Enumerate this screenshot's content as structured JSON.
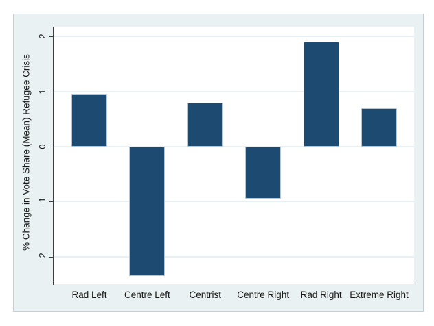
{
  "figure": {
    "background_color": "#eaf1f3",
    "border_color": "#c6ced3",
    "plot_background_color": "#ffffff",
    "gridline_color": "#e7f0f2",
    "axis_color": "#3c3c3c",
    "bar_fill_color": "#1d4a70",
    "bar_outline_color": "#b7c6d2",
    "text_color": "#1a1a1a"
  },
  "chart_data": {
    "type": "bar",
    "title": "",
    "xlabel": "",
    "ylabel": "% Change in Vote Share (Mean) Refugee Crisis",
    "categories": [
      "Rad Left",
      "Centre Left",
      "Centrist",
      "Centre Right",
      "Rad Right",
      "Extreme Right"
    ],
    "values": [
      0.96,
      -2.35,
      0.8,
      -0.95,
      1.9,
      0.7
    ],
    "yticks": [
      "-2",
      "-1",
      "0",
      "1",
      "2"
    ],
    "ytick_values": [
      -2,
      -1,
      0,
      1,
      2
    ],
    "ylim": [
      -2.5,
      2.18
    ],
    "grid": "horizontal-only",
    "legend": "none",
    "bar_orientation": "vertical"
  }
}
